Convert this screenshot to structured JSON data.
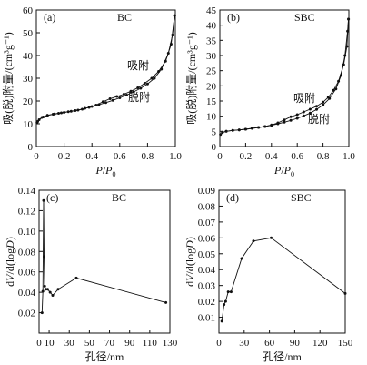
{
  "chart_data": [
    {
      "type": "line",
      "panel": "(a)",
      "title": "BC",
      "xlim": [
        0,
        1.0
      ],
      "ylim": [
        0,
        60
      ],
      "xticks": [
        "0",
        "0.2",
        "0.4",
        "0.6",
        "0.8",
        "1.0"
      ],
      "yticks": [
        "0",
        "10",
        "20",
        "30",
        "40",
        "50",
        "60"
      ],
      "xlabel": "P/P0",
      "ylabel": "吸(脱)附量/(cm³g⁻¹)",
      "grid": false,
      "series": [
        {
          "name": "吸附",
          "points": [
            [
              0.005,
              10.5
            ],
            [
              0.02,
              11.8
            ],
            [
              0.05,
              13.0
            ],
            [
              0.08,
              13.7
            ],
            [
              0.12,
              14.2
            ],
            [
              0.16,
              14.6
            ],
            [
              0.2,
              15.0
            ],
            [
              0.25,
              15.5
            ],
            [
              0.3,
              16.0
            ],
            [
              0.35,
              16.8
            ],
            [
              0.4,
              17.6
            ],
            [
              0.45,
              18.4
            ],
            [
              0.5,
              19.3
            ],
            [
              0.55,
              20.3
            ],
            [
              0.6,
              21.4
            ],
            [
              0.65,
              22.6
            ],
            [
              0.7,
              24.0
            ],
            [
              0.75,
              25.6
            ],
            [
              0.8,
              27.5
            ],
            [
              0.85,
              30.0
            ],
            [
              0.9,
              34.0
            ],
            [
              0.95,
              41.0
            ],
            [
              0.98,
              49.0
            ],
            [
              0.995,
              57.5
            ]
          ]
        },
        {
          "name": "脱附",
          "points": [
            [
              0.995,
              57.5
            ],
            [
              0.97,
              45.0
            ],
            [
              0.93,
              37.5
            ],
            [
              0.88,
              33.0
            ],
            [
              0.83,
              30.0
            ],
            [
              0.78,
              27.8
            ],
            [
              0.73,
              25.8
            ],
            [
              0.68,
              24.3
            ],
            [
              0.63,
              23.0
            ],
            [
              0.58,
              22.0
            ],
            [
              0.53,
              21.0
            ],
            [
              0.48,
              19.7
            ],
            [
              0.43,
              18.2
            ],
            [
              0.38,
              17.2
            ],
            [
              0.33,
              16.4
            ],
            [
              0.28,
              15.8
            ],
            [
              0.23,
              15.3
            ],
            [
              0.18,
              14.8
            ],
            [
              0.13,
              14.3
            ],
            [
              0.08,
              13.7
            ],
            [
              0.04,
              12.8
            ],
            [
              0.01,
              11.0
            ]
          ]
        }
      ],
      "annotations": [
        "吸附",
        "脱附"
      ]
    },
    {
      "type": "line",
      "panel": "(b)",
      "title": "SBC",
      "xlim": [
        0,
        1.0
      ],
      "ylim": [
        0,
        45
      ],
      "xticks": [
        "0",
        "0.2",
        "0.4",
        "0.6",
        "0.8",
        "1.0"
      ],
      "yticks": [
        "0",
        "5",
        "10",
        "15",
        "20",
        "25",
        "30",
        "35",
        "40",
        "45"
      ],
      "xlabel": "P/P0",
      "ylabel": "吸(脱)附量/(cm³g⁻¹)",
      "grid": false,
      "series": [
        {
          "name": "吸附",
          "points": [
            [
              0.005,
              4.0
            ],
            [
              0.02,
              4.6
            ],
            [
              0.05,
              5.0
            ],
            [
              0.1,
              5.3
            ],
            [
              0.15,
              5.5
            ],
            [
              0.2,
              5.7
            ],
            [
              0.25,
              6.0
            ],
            [
              0.3,
              6.3
            ],
            [
              0.35,
              6.6
            ],
            [
              0.4,
              7.0
            ],
            [
              0.45,
              7.5
            ],
            [
              0.5,
              8.0
            ],
            [
              0.55,
              8.6
            ],
            [
              0.6,
              9.3
            ],
            [
              0.65,
              10.1
            ],
            [
              0.7,
              11.0
            ],
            [
              0.75,
              12.2
            ],
            [
              0.8,
              13.7
            ],
            [
              0.85,
              15.8
            ],
            [
              0.9,
              19.0
            ],
            [
              0.94,
              23.5
            ],
            [
              0.97,
              30.0
            ],
            [
              0.99,
              38.0
            ],
            [
              0.997,
              42.0
            ]
          ]
        },
        {
          "name": "脱附",
          "points": [
            [
              0.997,
              42.0
            ],
            [
              0.985,
              33.0
            ],
            [
              0.96,
              27.0
            ],
            [
              0.92,
              21.5
            ],
            [
              0.88,
              18.5
            ],
            [
              0.84,
              16.2
            ],
            [
              0.8,
              14.6
            ],
            [
              0.75,
              13.3
            ],
            [
              0.7,
              12.3
            ],
            [
              0.65,
              11.4
            ],
            [
              0.6,
              10.5
            ],
            [
              0.55,
              9.8
            ],
            [
              0.5,
              8.8
            ],
            [
              0.45,
              7.8
            ],
            [
              0.4,
              7.1
            ],
            [
              0.35,
              6.6
            ],
            [
              0.3,
              6.3
            ],
            [
              0.25,
              6.0
            ],
            [
              0.2,
              5.7
            ],
            [
              0.15,
              5.5
            ],
            [
              0.1,
              5.3
            ],
            [
              0.05,
              5.0
            ],
            [
              0.02,
              4.7
            ]
          ]
        }
      ],
      "annotations": [
        "吸附",
        "脱附"
      ]
    },
    {
      "type": "line",
      "panel": "(c)",
      "title": "BC",
      "xlim": [
        0,
        130
      ],
      "ylim": [
        0,
        0.14
      ],
      "xticks": [
        "0",
        "10",
        "30",
        "50",
        "70",
        "90",
        "110",
        "130"
      ],
      "yticks": [
        "0.02",
        "0.04",
        "0.06",
        "0.08",
        "0.10",
        "0.12",
        "0.14"
      ],
      "xlabel": "孔径/nm",
      "ylabel": "dV/d(logD)",
      "grid": false,
      "series": [
        {
          "name": "",
          "points": [
            [
              3.0,
              0.02
            ],
            [
              3.8,
              0.041
            ],
            [
              4.5,
              0.13
            ],
            [
              5.0,
              0.075
            ],
            [
              5.6,
              0.046
            ],
            [
              6.5,
              0.043
            ],
            [
              8.5,
              0.043
            ],
            [
              11.0,
              0.04
            ],
            [
              13.5,
              0.037
            ],
            [
              19.0,
              0.043
            ],
            [
              37.0,
              0.054
            ],
            [
              126.0,
              0.03
            ]
          ]
        }
      ]
    },
    {
      "type": "line",
      "panel": "(d)",
      "title": "SBC",
      "xlim": [
        0,
        150
      ],
      "ylim": [
        0,
        0.09
      ],
      "xticks": [
        "0",
        "30",
        "60",
        "90",
        "120",
        "150"
      ],
      "yticks": [
        "0.01",
        "0.02",
        "0.03",
        "0.04",
        "0.05",
        "0.06",
        "0.07",
        "0.08",
        "0.09"
      ],
      "xlabel": "孔径/nm",
      "ylabel": "dV/d(logD)",
      "grid": false,
      "series": [
        {
          "name": "",
          "points": [
            [
              3.5,
              0.0075
            ],
            [
              6.0,
              0.018
            ],
            [
              8.0,
              0.02
            ],
            [
              11.0,
              0.026
            ],
            [
              14.5,
              0.026
            ],
            [
              27.0,
              0.047
            ],
            [
              41.0,
              0.058
            ],
            [
              62.0,
              0.06
            ],
            [
              150.0,
              0.025
            ]
          ]
        }
      ]
    }
  ]
}
